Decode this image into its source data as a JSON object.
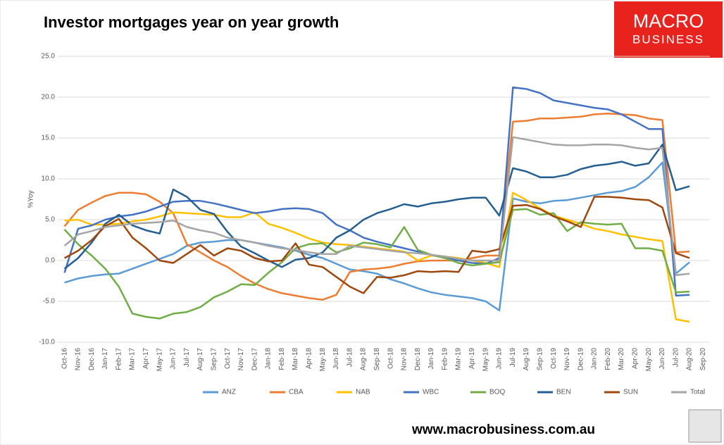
{
  "chart_data": {
    "type": "line",
    "title": "Investor mortgages year on year growth",
    "y_label": "%Yoy",
    "logo": [
      "MACRO",
      "BUSINESS"
    ],
    "footer": "www.macrobusiness.com.au",
    "grid": true,
    "legend": "bottom",
    "ylim": [
      -10,
      25
    ],
    "yticks": [
      {
        "value": -10,
        "label": "-10.0"
      },
      {
        "value": -5,
        "label": "-5.0"
      },
      {
        "value": 0,
        "label": "0.0"
      },
      {
        "value": 5,
        "label": "5.0"
      },
      {
        "value": 10,
        "label": "10.0"
      },
      {
        "value": 15,
        "label": "15.0"
      },
      {
        "value": 20,
        "label": "20.0"
      },
      {
        "value": 25,
        "label": "25.0"
      }
    ],
    "categories": [
      "Oct-16",
      "Nov-16",
      "Dec-16",
      "Jan-17",
      "Feb-17",
      "Mar-17",
      "Apr-17",
      "May-17",
      "Jun-17",
      "Jul-17",
      "Aug-17",
      "Sep-17",
      "Oct-17",
      "Nov-17",
      "Dec-17",
      "Jan-18",
      "Feb-18",
      "Mar-18",
      "Apr-18",
      "May-18",
      "Jun-18",
      "Jul-18",
      "Aug-18",
      "Sep-18",
      "Oct-18",
      "Nov-18",
      "Dec-18",
      "Jan-19",
      "Feb-19",
      "Mar-19",
      "Apr-19",
      "May-19",
      "Jun-19",
      "Jul-19",
      "Aug-19",
      "Sep-19",
      "Oct-19",
      "Nov-19",
      "Dec-19",
      "Jan-20",
      "Feb-20",
      "Mar-20",
      "Apr-20",
      "May-20",
      "Jun-20",
      "Jul-20",
      "Aug-20",
      "Sep-20"
    ],
    "series": [
      {
        "name": "ANZ",
        "color": "#5b9bd5",
        "values": [
          -2.7,
          -2.2,
          -1.9,
          -1.7,
          -1.6,
          -1.0,
          -0.4,
          0.2,
          0.8,
          1.8,
          2.2,
          2.3,
          2.5,
          2.5,
          2.2,
          1.9,
          1.6,
          1.2,
          0.7,
          0.3,
          -0.4,
          -1.1,
          -1.3,
          -1.6,
          -2.3,
          -2.8,
          -3.4,
          -3.9,
          -4.2,
          -4.4,
          -4.6,
          -5.0,
          -6.1,
          7.6,
          7.2,
          7.0,
          7.3,
          7.4,
          7.7,
          8.0,
          8.3,
          8.5,
          9.0,
          10.2,
          12.0,
          -1.6,
          -0.2,
          null
        ]
      },
      {
        "name": "CBA",
        "color": "#ed7d31",
        "values": [
          4.2,
          6.2,
          7.1,
          7.9,
          8.3,
          8.3,
          8.1,
          7.2,
          5.8,
          2.0,
          1.0,
          0.0,
          -0.8,
          -1.9,
          -2.8,
          -3.5,
          -4.0,
          -4.3,
          -4.6,
          -4.8,
          -4.2,
          -1.4,
          -1.1,
          -1.0,
          -0.8,
          -0.4,
          -0.1,
          0.0,
          0.0,
          0.0,
          0.3,
          0.6,
          0.6,
          17.0,
          17.1,
          17.4,
          17.4,
          17.5,
          17.6,
          17.9,
          18.0,
          17.9,
          17.8,
          17.4,
          17.2,
          1.0,
          1.1,
          null
        ]
      },
      {
        "name": "NAB",
        "color": "#ffc000",
        "values": [
          4.9,
          5.0,
          4.4,
          4.4,
          4.5,
          4.8,
          5.0,
          5.4,
          5.9,
          5.8,
          5.7,
          5.6,
          5.3,
          5.3,
          5.9,
          4.5,
          4.0,
          3.4,
          2.7,
          2.2,
          2.0,
          1.9,
          1.7,
          1.5,
          1.3,
          1.1,
          0.0,
          0.6,
          0.5,
          0.3,
          0.0,
          -0.3,
          -0.8,
          8.3,
          7.4,
          6.4,
          5.5,
          5.0,
          4.5,
          3.9,
          3.6,
          3.2,
          2.9,
          2.6,
          2.4,
          -7.2,
          -7.5,
          null
        ]
      },
      {
        "name": "WBC",
        "color": "#4472c4",
        "values": [
          -1.5,
          3.9,
          4.3,
          5.0,
          5.4,
          5.6,
          6.0,
          6.6,
          7.2,
          7.3,
          7.3,
          7.0,
          6.6,
          6.2,
          5.8,
          6.0,
          6.3,
          6.4,
          6.3,
          5.8,
          4.4,
          3.7,
          2.8,
          2.3,
          1.9,
          1.5,
          1.1,
          0.7,
          0.3,
          0.0,
          -0.3,
          -0.4,
          0.3,
          21.2,
          21.0,
          20.5,
          19.6,
          19.3,
          19.0,
          18.7,
          18.5,
          17.9,
          17.0,
          16.1,
          16.1,
          -4.3,
          -4.2,
          null
        ]
      },
      {
        "name": "BOQ",
        "color": "#70ad47",
        "values": [
          3.8,
          2.0,
          0.6,
          -1.0,
          -3.2,
          -6.5,
          -6.9,
          -7.1,
          -6.5,
          -6.3,
          -5.7,
          -4.5,
          -3.8,
          -2.9,
          -3.0,
          -1.5,
          -0.2,
          1.5,
          2.0,
          2.1,
          1.0,
          1.5,
          2.2,
          2.0,
          1.6,
          4.1,
          1.3,
          0.7,
          0.3,
          -0.3,
          -0.6,
          -0.4,
          -0.2,
          6.2,
          6.3,
          5.6,
          5.8,
          3.6,
          4.7,
          4.5,
          4.4,
          4.5,
          1.5,
          1.5,
          1.2,
          -3.9,
          -3.8,
          null
        ]
      },
      {
        "name": "BEN",
        "color": "#255e91",
        "values": [
          -1.0,
          0.3,
          2.2,
          4.5,
          5.6,
          4.3,
          3.7,
          3.3,
          8.7,
          7.8,
          6.2,
          5.7,
          3.5,
          1.7,
          0.9,
          0.0,
          -0.8,
          0.1,
          0.3,
          1.0,
          2.8,
          3.7,
          5.0,
          5.8,
          6.3,
          6.9,
          6.6,
          7.0,
          7.2,
          7.5,
          7.7,
          7.7,
          5.5,
          11.3,
          10.9,
          10.2,
          10.2,
          10.5,
          11.2,
          11.6,
          11.8,
          12.1,
          11.6,
          11.9,
          14.2,
          8.6,
          9.1,
          null
        ]
      },
      {
        "name": "SUN",
        "color": "#9e480e",
        "values": [
          0.3,
          1.2,
          2.5,
          4.2,
          5.1,
          2.8,
          1.5,
          0.0,
          -0.3,
          0.8,
          1.9,
          0.6,
          1.5,
          1.2,
          0.3,
          -0.1,
          0.0,
          2.1,
          -0.5,
          -0.8,
          -2.0,
          -3.2,
          -4.0,
          -2.0,
          -2.1,
          -1.8,
          -1.3,
          -1.4,
          -1.3,
          -1.4,
          1.2,
          1.0,
          1.4,
          6.7,
          6.8,
          6.3,
          5.4,
          4.8,
          4.1,
          7.8,
          7.8,
          7.7,
          7.5,
          7.4,
          6.5,
          0.9,
          0.3,
          null
        ]
      },
      {
        "name": "Total",
        "color": "#a5a5a5",
        "values": [
          1.8,
          3.2,
          3.6,
          4.1,
          4.3,
          4.5,
          4.6,
          4.7,
          4.9,
          4.1,
          3.7,
          3.4,
          2.8,
          2.5,
          2.2,
          1.8,
          1.5,
          1.3,
          1.0,
          0.8,
          0.8,
          1.8,
          1.6,
          1.4,
          1.2,
          1.0,
          0.9,
          0.7,
          0.5,
          0.2,
          0.0,
          0.0,
          0.0,
          15.1,
          14.8,
          14.5,
          14.2,
          14.1,
          14.1,
          14.2,
          14.2,
          14.1,
          13.8,
          13.6,
          13.8,
          -1.8,
          -1.6,
          null
        ]
      }
    ]
  }
}
